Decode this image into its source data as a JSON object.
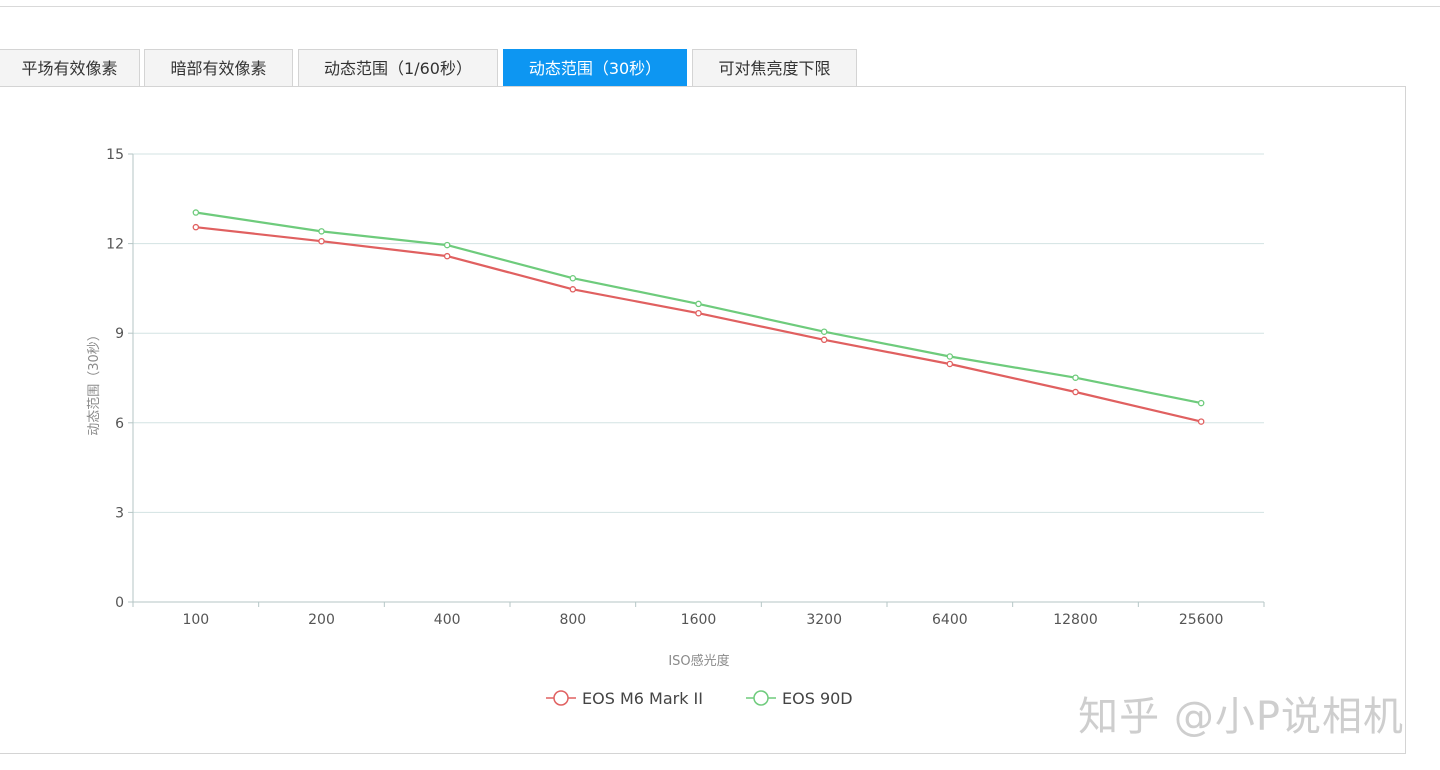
{
  "tabs": [
    {
      "label": "平场有效像素",
      "active": false
    },
    {
      "label": "暗部有效像素",
      "active": false
    },
    {
      "label": "动态范围（1/60秒）",
      "active": false
    },
    {
      "label": "动态范围（30秒）",
      "active": true
    },
    {
      "label": "可对焦亮度下限",
      "active": false
    }
  ],
  "watermark": "知乎 @小P说相机",
  "chart_data": {
    "type": "line",
    "title": "",
    "xlabel": "ISO感光度",
    "ylabel": "动态范围（30秒）",
    "categories": [
      "100",
      "200",
      "400",
      "800",
      "1600",
      "3200",
      "6400",
      "12800",
      "25600"
    ],
    "ylim": [
      0,
      15
    ],
    "yticks": [
      0,
      3,
      6,
      9,
      12,
      15
    ],
    "grid": true,
    "legend_position": "bottom",
    "series": [
      {
        "name": "EOS M6 Mark II",
        "color": "#e06060",
        "values": [
          12.55,
          12.08,
          11.58,
          10.47,
          9.67,
          8.78,
          7.97,
          7.03,
          6.04
        ]
      },
      {
        "name": "EOS 90D",
        "color": "#6ecb7c",
        "values": [
          13.04,
          12.41,
          11.95,
          10.84,
          9.98,
          9.05,
          8.22,
          7.51,
          6.66
        ]
      }
    ]
  }
}
